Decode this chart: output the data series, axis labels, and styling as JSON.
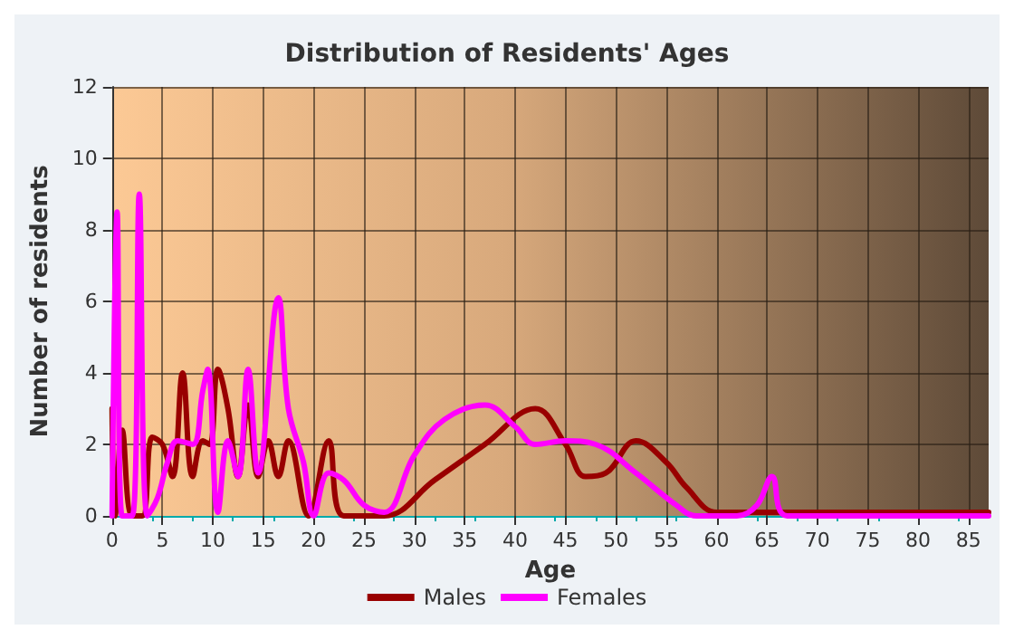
{
  "chart_data": {
    "type": "line",
    "title": "Distribution of Residents' Ages",
    "xlabel": "Age",
    "ylabel": "Number of residents",
    "xlim": [
      0,
      87
    ],
    "xticks": [
      0,
      5,
      10,
      15,
      20,
      25,
      30,
      35,
      40,
      45,
      50,
      55,
      60,
      65,
      70,
      75,
      80,
      85
    ],
    "ylim": [
      0,
      12
    ],
    "yticks": [
      0,
      2,
      4,
      6,
      8,
      10,
      12
    ],
    "grid": true,
    "legend": "bottom",
    "marker": "none",
    "line_style": "solid",
    "series": [
      {
        "name": "Males",
        "color": "#990000",
        "x": [
          0,
          0.3,
          1,
          2,
          3,
          4,
          5,
          6,
          7,
          8,
          9,
          9.7,
          10.5,
          11.5,
          12.5,
          13.5,
          14.5,
          15.5,
          16.5,
          17.5,
          19.5,
          21.5,
          23,
          27,
          32,
          37,
          42,
          45,
          47,
          49,
          52,
          55,
          57,
          60,
          62,
          70,
          87
        ],
        "values": [
          3,
          0,
          2.4,
          0,
          0,
          2.2,
          2,
          1.1,
          4,
          1.1,
          2.1,
          2,
          4.1,
          3,
          1.1,
          3.1,
          1.1,
          2.1,
          1.1,
          2.1,
          0,
          2.1,
          0,
          0,
          1,
          2,
          3,
          2,
          1.1,
          1.2,
          2.1,
          1.5,
          0.8,
          0.1,
          0.1,
          0.1,
          0.1
        ]
      },
      {
        "name": "Females",
        "color": "#ff00ff",
        "x": [
          0,
          0.5,
          1,
          2,
          2.7,
          3.5,
          4.5,
          5.5,
          6.5,
          8,
          9,
          9.5,
          10.5,
          11.5,
          12.5,
          13.5,
          14.5,
          16.5,
          17.5,
          19,
          20,
          21.5,
          23,
          25,
          27,
          30,
          33,
          37,
          40,
          42,
          45,
          48,
          52,
          56,
          58,
          62,
          64,
          65.5,
          67,
          87
        ],
        "values": [
          0,
          8.5,
          0,
          0,
          9,
          0,
          0.5,
          1.5,
          2.1,
          2,
          3.5,
          4.1,
          0.1,
          2.1,
          1.1,
          4.1,
          1.2,
          6.1,
          3,
          1.5,
          0,
          1.2,
          1,
          0.3,
          0.1,
          1.7,
          2.7,
          3.1,
          2.5,
          2,
          2.1,
          2,
          1.2,
          0.3,
          0,
          0,
          0.3,
          1.1,
          0,
          0
        ]
      }
    ]
  }
}
